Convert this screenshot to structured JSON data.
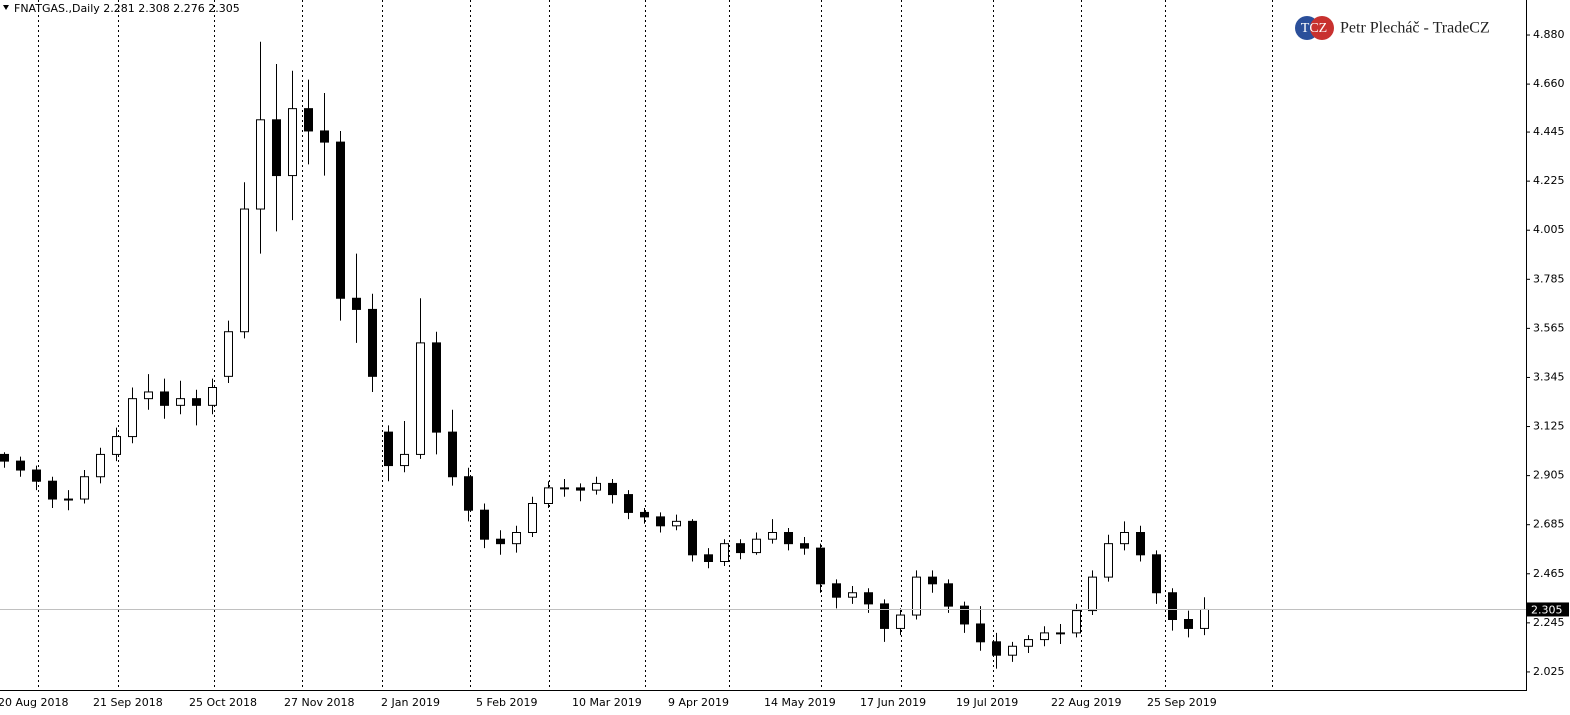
{
  "chart_data": {
    "type": "candlestick",
    "title": "FNATGAS.,Daily  2.281 2.308 2.276 2.305",
    "watermark": {
      "logo": "TCZ",
      "text": "Petr Plecháč - TradeCZ"
    },
    "x_labels": [
      "20 Aug 2018",
      "21 Sep 2018",
      "25 Oct 2018",
      "27 Nov 2018",
      "2 Jan 2019",
      "5 Feb 2019",
      "10 Mar 2019",
      "9 Apr 2019",
      "14 May 2019",
      "17 Jun 2019",
      "19 Jul 2019",
      "22 Aug 2019",
      "25 Sep 2019"
    ],
    "ylim": [
      1.944,
      5.037
    ],
    "yticks": [
      {
        "value": 4.88,
        "label": "4.880"
      },
      {
        "value": 4.66,
        "label": "4.660"
      },
      4.445,
      4.225,
      4.005,
      3.785,
      3.565,
      3.345,
      3.125,
      2.905,
      2.685,
      2.465,
      2.245,
      2.025
    ],
    "last_price": 2.305,
    "up_color": "#ffffff",
    "down_color": "#000000",
    "open": [
      3.0,
      2.97,
      2.93,
      2.88,
      2.8,
      2.8,
      2.9,
      3.0,
      3.08,
      3.25,
      3.28,
      3.22,
      3.25,
      3.22,
      3.35,
      3.55,
      4.1,
      4.5,
      4.25,
      4.55,
      4.45,
      4.4,
      3.7,
      3.65,
      3.1,
      2.95,
      3.0,
      3.5,
      3.1,
      2.9,
      2.75,
      2.62,
      2.6,
      2.65,
      2.78,
      2.85,
      2.85,
      2.84,
      2.87,
      2.82,
      2.74,
      2.72,
      2.68,
      2.7,
      2.55,
      2.52,
      2.6,
      2.56,
      2.62,
      2.65,
      2.6,
      2.58,
      2.42,
      2.36,
      2.38,
      2.33,
      2.22,
      2.28,
      2.45,
      2.42,
      2.32,
      2.24,
      2.16,
      2.1,
      2.14,
      2.17,
      2.2,
      2.2,
      2.3,
      2.45,
      2.6,
      2.65,
      2.55,
      2.38,
      2.26,
      2.22
    ],
    "high": [
      3.01,
      2.99,
      2.95,
      2.9,
      2.84,
      2.93,
      3.03,
      3.12,
      3.3,
      3.36,
      3.34,
      3.33,
      3.29,
      3.34,
      3.6,
      4.22,
      4.85,
      4.75,
      4.72,
      4.68,
      4.62,
      4.45,
      3.9,
      3.72,
      3.13,
      3.15,
      3.7,
      3.55,
      3.2,
      2.94,
      2.78,
      2.66,
      2.68,
      2.81,
      2.88,
      2.89,
      2.87,
      2.9,
      2.89,
      2.84,
      2.76,
      2.74,
      2.73,
      2.71,
      2.58,
      2.62,
      2.62,
      2.65,
      2.71,
      2.67,
      2.63,
      2.6,
      2.44,
      2.41,
      2.4,
      2.35,
      2.31,
      2.48,
      2.48,
      2.44,
      2.34,
      2.32,
      2.2,
      2.16,
      2.19,
      2.23,
      2.24,
      2.33,
      2.48,
      2.64,
      2.7,
      2.68,
      2.57,
      2.4,
      2.3,
      2.36
    ],
    "low": [
      2.94,
      2.9,
      2.84,
      2.76,
      2.75,
      2.78,
      2.87,
      2.97,
      3.05,
      3.2,
      3.16,
      3.18,
      3.13,
      3.18,
      3.32,
      3.52,
      3.9,
      4.0,
      4.05,
      4.3,
      4.25,
      3.6,
      3.5,
      3.28,
      2.88,
      2.92,
      2.98,
      3.0,
      2.86,
      2.7,
      2.58,
      2.55,
      2.56,
      2.63,
      2.76,
      2.81,
      2.79,
      2.82,
      2.78,
      2.71,
      2.69,
      2.65,
      2.66,
      2.52,
      2.49,
      2.5,
      2.53,
      2.55,
      2.6,
      2.57,
      2.55,
      2.38,
      2.31,
      2.33,
      2.29,
      2.16,
      2.19,
      2.26,
      2.38,
      2.29,
      2.2,
      2.12,
      2.04,
      2.07,
      2.11,
      2.14,
      2.15,
      2.18,
      2.28,
      2.43,
      2.57,
      2.52,
      2.33,
      2.21,
      2.18,
      2.19
    ],
    "close": [
      2.97,
      2.93,
      2.88,
      2.8,
      2.8,
      2.9,
      3.0,
      3.08,
      3.25,
      3.28,
      3.22,
      3.25,
      3.22,
      3.3,
      3.55,
      4.1,
      4.5,
      4.25,
      4.55,
      4.45,
      4.4,
      3.7,
      3.65,
      3.35,
      2.95,
      3.0,
      3.5,
      3.1,
      2.9,
      2.75,
      2.62,
      2.6,
      2.65,
      2.78,
      2.85,
      2.85,
      2.84,
      2.87,
      2.82,
      2.74,
      2.72,
      2.68,
      2.7,
      2.55,
      2.52,
      2.6,
      2.56,
      2.62,
      2.65,
      2.6,
      2.58,
      2.42,
      2.36,
      2.38,
      2.33,
      2.22,
      2.28,
      2.45,
      2.42,
      2.32,
      2.24,
      2.16,
      2.1,
      2.14,
      2.17,
      2.2,
      2.2,
      2.3,
      2.45,
      2.6,
      2.65,
      2.55,
      2.38,
      2.26,
      2.22,
      2.305
    ]
  }
}
